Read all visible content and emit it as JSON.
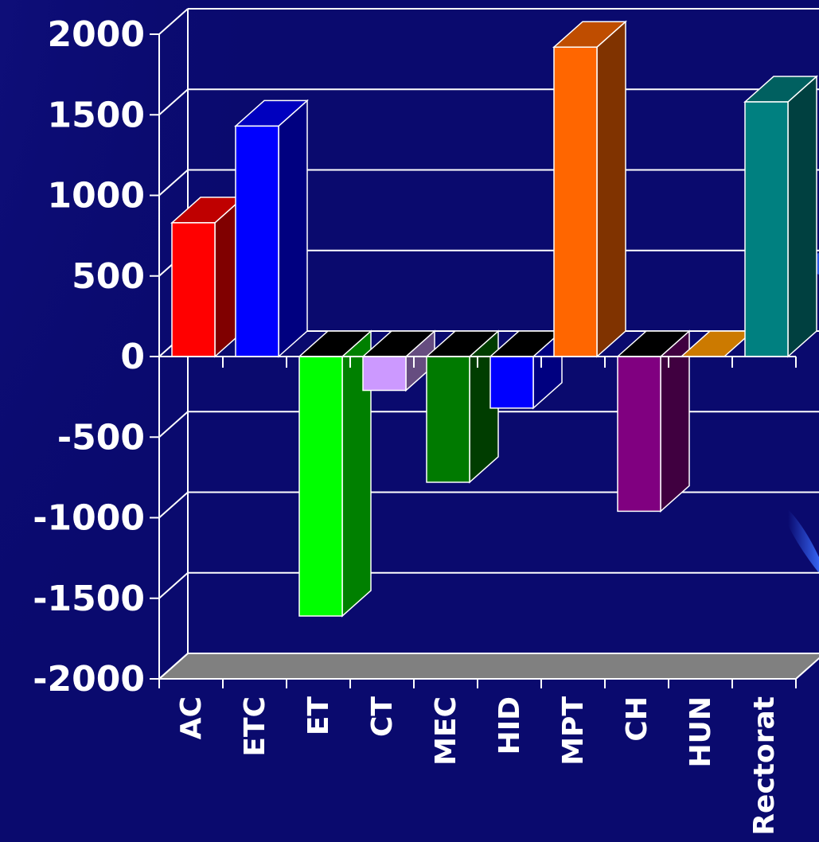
{
  "chart_data": {
    "type": "bar",
    "style": "3d",
    "categories": [
      "AC",
      "ETC",
      "ET",
      "CT",
      "MEC",
      "HID",
      "MPT",
      "CH",
      "HUN",
      "Rectorat"
    ],
    "values": [
      830,
      1430,
      -1610,
      -210,
      -780,
      -320,
      1920,
      -960,
      0,
      1580
    ],
    "colors": [
      "#ff0000",
      "#0000ff",
      "#00ff00",
      "#cc99ff",
      "#007a00",
      "#0000ff",
      "#ff6600",
      "#800080",
      "#cc7a00",
      "#008080"
    ],
    "ylim": [
      -2000,
      2000
    ],
    "yticks": [
      "2000",
      "1500",
      "1000",
      "500",
      "0",
      "-500",
      "-1000",
      "-1500",
      "-2000"
    ],
    "ytick_values": [
      2000,
      1500,
      1000,
      500,
      0,
      -500,
      -1000,
      -1500,
      -2000
    ],
    "grid": true,
    "title": "",
    "xlabel": "",
    "ylabel": ""
  },
  "theme": {
    "background": "#0a0a6e",
    "axis_color": "#ffffff",
    "floor_color": "#808080",
    "cap_negative": "#000000"
  }
}
